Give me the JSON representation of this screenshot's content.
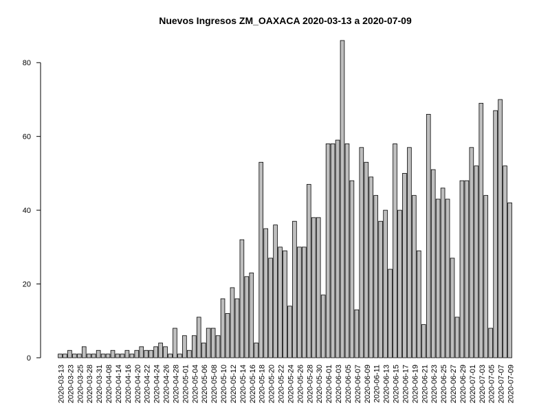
{
  "chart_data": {
    "type": "bar",
    "title": "Nuevos Ingresos ZM_OAXACA 2020-03-13 a 2020-07-09",
    "xlabel": "",
    "ylabel": "",
    "ylim": [
      0,
      86
    ],
    "y_ticks": [
      0,
      20,
      40,
      60,
      80
    ],
    "x_tick_labels": [
      "2020-03-13",
      "2020-03-23",
      "2020-03-25",
      "2020-03-28",
      "2020-03-31",
      "2020-04-08",
      "2020-04-14",
      "2020-04-16",
      "2020-04-20",
      "2020-04-22",
      "2020-04-24",
      "2020-04-26",
      "2020-04-28",
      "2020-05-01",
      "2020-05-04",
      "2020-05-06",
      "2020-05-08",
      "2020-05-10",
      "2020-05-12",
      "2020-05-14",
      "2020-05-16",
      "2020-05-18",
      "2020-05-20",
      "2020-05-22",
      "2020-05-24",
      "2020-05-26",
      "2020-05-28",
      "2020-05-30",
      "2020-06-01",
      "2020-06-03",
      "2020-06-05",
      "2020-06-07",
      "2020-06-09",
      "2020-06-11",
      "2020-06-13",
      "2020-06-15",
      "2020-06-17",
      "2020-06-19",
      "2020-06-21",
      "2020-06-23",
      "2020-06-25",
      "2020-06-27",
      "2020-06-29",
      "2020-07-01",
      "2020-07-03",
      "2020-07-05",
      "2020-07-07",
      "2020-07-09"
    ],
    "values": [
      1,
      1,
      2,
      1,
      1,
      3,
      1,
      1,
      2,
      1,
      1,
      2,
      1,
      1,
      2,
      1,
      2,
      3,
      2,
      2,
      3,
      4,
      3,
      1,
      8,
      1,
      6,
      2,
      6,
      11,
      4,
      8,
      8,
      6,
      16,
      12,
      19,
      16,
      32,
      22,
      23,
      4,
      53,
      35,
      27,
      36,
      30,
      29,
      14,
      37,
      30,
      30,
      47,
      38,
      38,
      17,
      58,
      58,
      59,
      86,
      58,
      48,
      13,
      57,
      53,
      49,
      44,
      37,
      40,
      24,
      58,
      40,
      50,
      57,
      44,
      29,
      9,
      66,
      51,
      43,
      46,
      43,
      27,
      11,
      48,
      48,
      57,
      52,
      69,
      44,
      8,
      67,
      70,
      52,
      42
    ],
    "bar_fill": "#bebebe",
    "bar_stroke": "#000000",
    "grid": false,
    "legend": "none"
  }
}
